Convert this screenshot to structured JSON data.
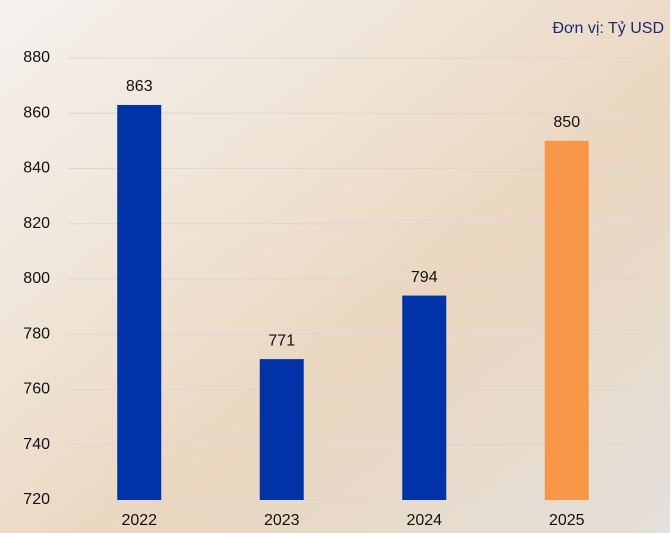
{
  "chart_data": {
    "type": "bar",
    "unit_label": "Đơn vị: Tỷ USD",
    "categories": [
      "2022",
      "2023",
      "2024",
      "2025"
    ],
    "values": [
      863,
      771,
      794,
      850
    ],
    "colors": [
      "#0033a8",
      "#0033a8",
      "#0033a8",
      "#f79646"
    ],
    "ylim": [
      720,
      880
    ],
    "yticks": [
      720,
      740,
      760,
      780,
      800,
      820,
      840,
      860,
      880
    ],
    "grid": true
  }
}
